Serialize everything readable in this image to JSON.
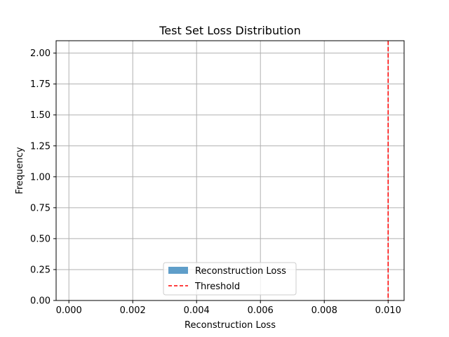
{
  "chart_data": {
    "type": "bar",
    "title": "Test Set Loss Distribution",
    "xlabel": "Reconstruction Loss",
    "ylabel": "Frequency",
    "xlim": [
      -0.0004,
      0.0105
    ],
    "ylim": [
      0,
      2.1
    ],
    "xticks": [
      0.0,
      0.002,
      0.004,
      0.006,
      0.008,
      0.01
    ],
    "xtick_labels": [
      "0.000",
      "0.002",
      "0.004",
      "0.006",
      "0.008",
      "0.010"
    ],
    "yticks": [
      0,
      0.25,
      0.5,
      0.75,
      1.0,
      1.25,
      1.5,
      1.75,
      2.0
    ],
    "ytick_labels": [
      "0.00",
      "0.25",
      "0.50",
      "0.75",
      "1.00",
      "1.25",
      "1.50",
      "1.75",
      "2.00"
    ],
    "grid": true,
    "series": [
      {
        "name": "Reconstruction Loss",
        "kind": "histogram",
        "color": "#5f9ec9",
        "values": []
      },
      {
        "name": "Threshold",
        "kind": "vline",
        "x": 0.01,
        "color": "#ff0000",
        "style": "dashed"
      }
    ],
    "legend": {
      "placement": "lower-center"
    }
  }
}
